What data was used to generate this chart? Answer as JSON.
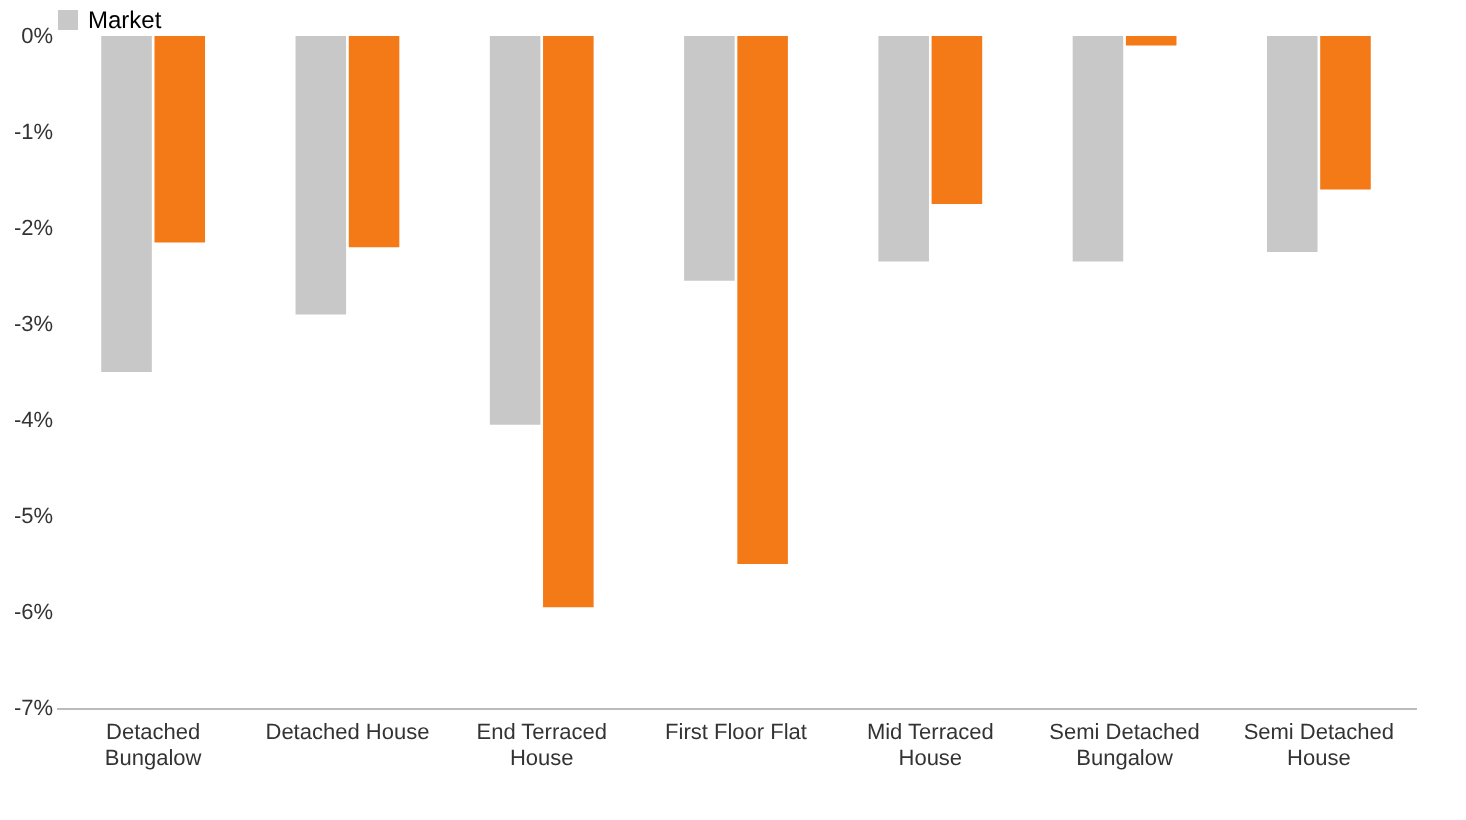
{
  "chart_data": {
    "type": "bar",
    "categories": [
      "Detached Bungalow",
      "Detached House",
      "End Terraced House",
      "First Floor Flat",
      "Mid Terraced House",
      "Semi Detached Bungalow",
      "Semi Detached House"
    ],
    "series": [
      {
        "name": "Market",
        "color": "#c8c8c8",
        "values": [
          -3.5,
          -2.9,
          -4.05,
          -2.55,
          -2.35,
          -2.35,
          -2.25
        ]
      },
      {
        "color": "#f47a17",
        "values": [
          -2.15,
          -2.2,
          -5.95,
          -5.5,
          -1.75,
          -0.1,
          -1.6
        ]
      }
    ],
    "ylim": [
      -7,
      0
    ],
    "yticks": [
      {
        "value": 0,
        "label": "0%"
      },
      {
        "value": -1,
        "label": "-1%"
      },
      {
        "value": -2,
        "label": "-2%"
      },
      {
        "value": -3,
        "label": "-3%"
      },
      {
        "value": -4,
        "label": "-4%"
      },
      {
        "value": -5,
        "label": "-5%"
      },
      {
        "value": -6,
        "label": "-6%"
      },
      {
        "value": -7,
        "label": "-7%"
      }
    ],
    "grid": false,
    "legend": "top"
  }
}
